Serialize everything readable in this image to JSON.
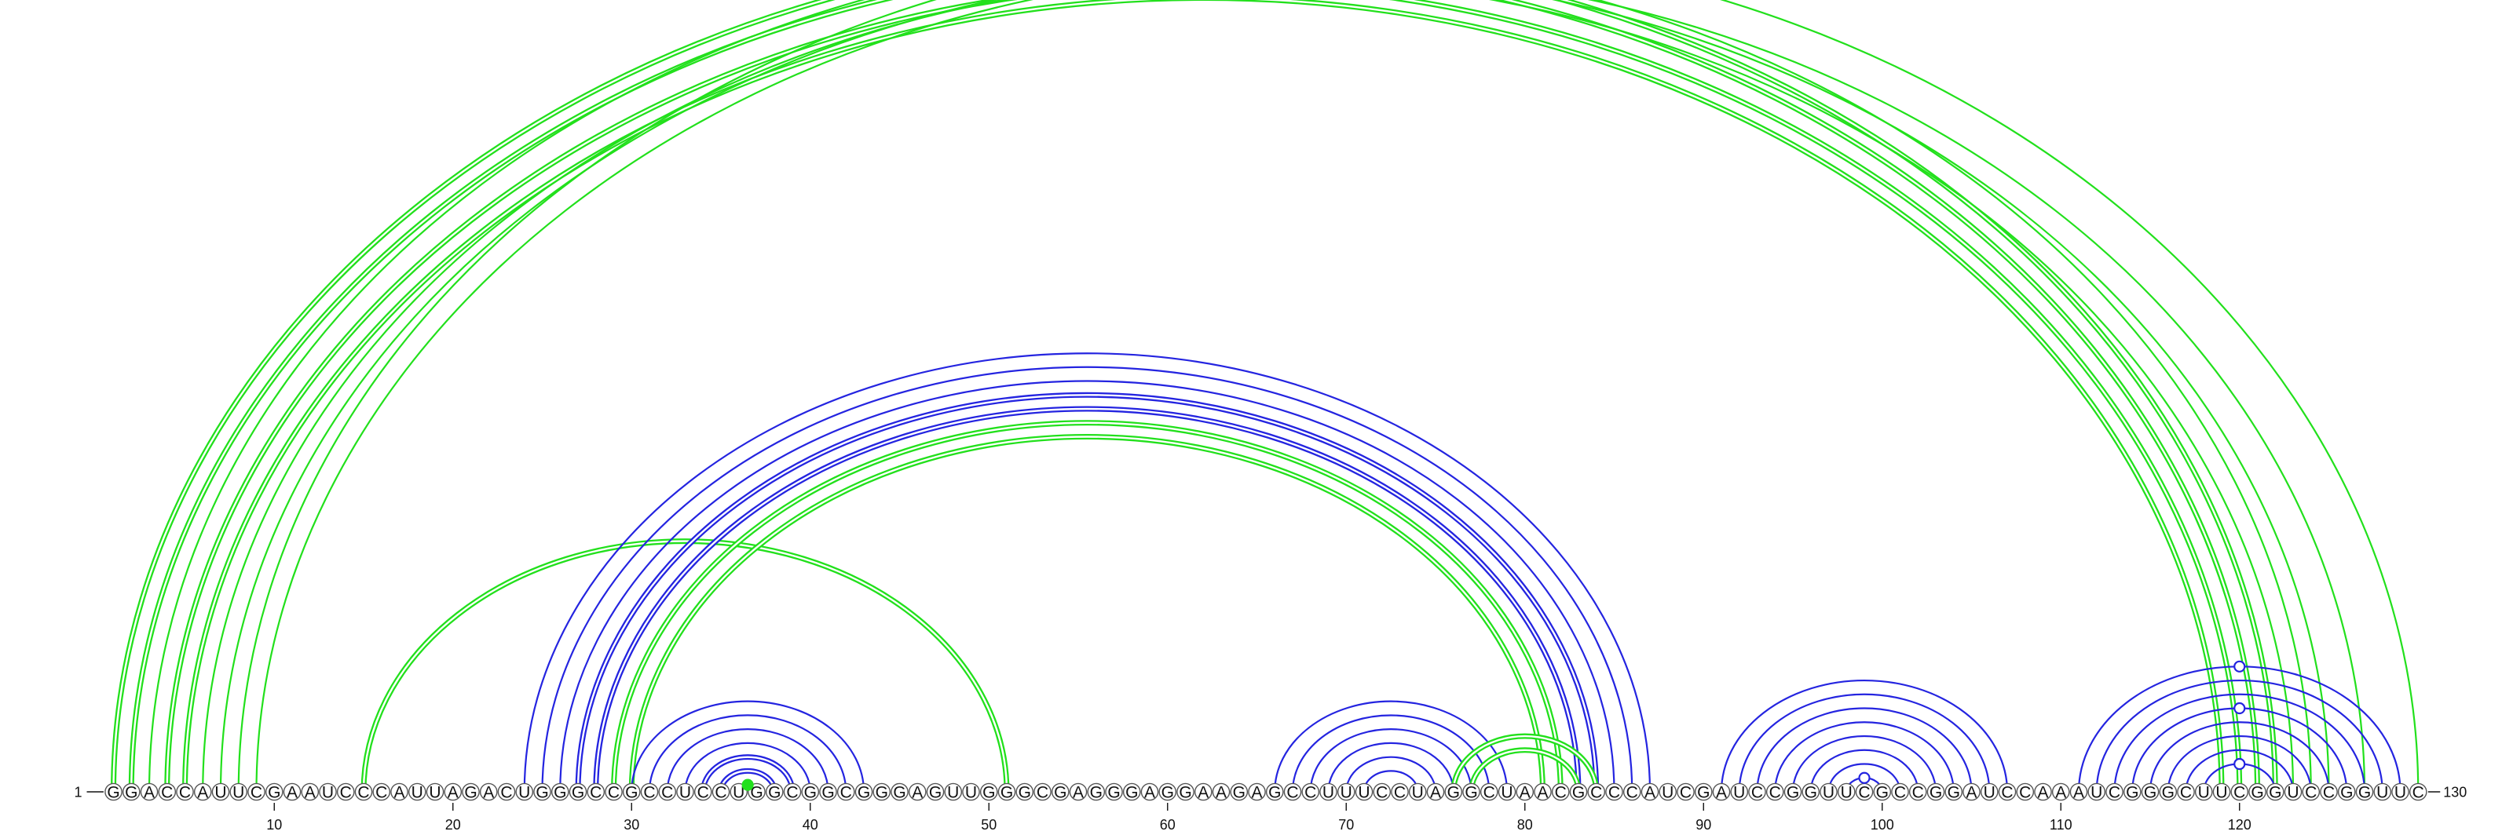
{
  "sequence": "GGACCAUUCGAAUCCCAUUAGACUGGGCCGCCUCCUGGCGGCGGGAGUUGGGCGAGGGAGGAAGAGCCUUUCCUAGGCUAACGCCCAUCGAUCCGGUUCGCCGGAUCCAAAUCGGGCUUCGGUCCGGUUC",
  "start_label": "1",
  "end_label": "130",
  "ticks": [
    {
      "pos": 10,
      "label": "10"
    },
    {
      "pos": 20,
      "label": "20"
    },
    {
      "pos": 30,
      "label": "30"
    },
    {
      "pos": 40,
      "label": "40"
    },
    {
      "pos": 50,
      "label": "50"
    },
    {
      "pos": 60,
      "label": "60"
    },
    {
      "pos": 70,
      "label": "70"
    },
    {
      "pos": 80,
      "label": "80"
    },
    {
      "pos": 90,
      "label": "90"
    },
    {
      "pos": 100,
      "label": "100"
    },
    {
      "pos": 110,
      "label": "110"
    },
    {
      "pos": 120,
      "label": "120"
    }
  ],
  "colors": {
    "green": "#22e01c",
    "blue": "#2424e0",
    "text": "#111111",
    "node_stroke": "#555555"
  },
  "arc_groups": [
    {
      "color": "green",
      "weight": "heavy",
      "pairs": [
        [
          1,
          122
        ],
        [
          2,
          121
        ],
        [
          4,
          120
        ],
        [
          5,
          119
        ]
      ]
    },
    {
      "color": "green",
      "weight": "light",
      "pairs": [
        [
          3,
          124
        ],
        [
          6,
          123
        ],
        [
          7,
          125
        ],
        [
          8,
          130
        ],
        [
          9,
          127
        ]
      ]
    },
    {
      "color": "green",
      "weight": "heavy",
      "pairs": [
        [
          15,
          51
        ]
      ]
    },
    {
      "color": "blue",
      "weight": "light",
      "pairs": [
        [
          24,
          87
        ],
        [
          25,
          86
        ],
        [
          26,
          85
        ]
      ]
    },
    {
      "color": "blue",
      "weight": "heavy",
      "pairs": [
        [
          27,
          84
        ],
        [
          28,
          83
        ]
      ]
    },
    {
      "color": "green",
      "weight": "heavy",
      "pairs": [
        [
          29,
          82
        ],
        [
          30,
          81
        ]
      ]
    },
    {
      "color": "blue",
      "weight": "light",
      "pairs": [
        [
          30,
          43
        ],
        [
          31,
          42
        ],
        [
          32,
          41
        ],
        [
          33,
          40
        ]
      ]
    },
    {
      "color": "blue",
      "weight": "heavy",
      "pairs": [
        [
          34,
          39
        ],
        [
          35,
          38
        ]
      ]
    },
    {
      "color": "green",
      "weight": "light",
      "pairs": [
        [
          36,
          37
        ]
      ]
    },
    {
      "color": "blue",
      "weight": "light",
      "pairs": [
        [
          66,
          79
        ],
        [
          67,
          78
        ],
        [
          68,
          77
        ],
        [
          69,
          76
        ],
        [
          70,
          75
        ],
        [
          71,
          74
        ]
      ]
    },
    {
      "color": "green",
      "weight": "heavy",
      "pairs": [
        [
          76,
          84
        ],
        [
          77,
          83
        ]
      ]
    },
    {
      "color": "blue",
      "weight": "light",
      "pairs": [
        [
          91,
          107
        ],
        [
          92,
          106
        ],
        [
          93,
          105
        ],
        [
          94,
          104
        ],
        [
          95,
          103
        ],
        [
          96,
          102
        ],
        [
          97,
          101
        ],
        [
          98,
          100
        ]
      ]
    },
    {
      "color": "blue",
      "weight": "light",
      "pairs": [
        [
          111,
          129
        ],
        [
          112,
          128
        ],
        [
          113,
          127
        ],
        [
          114,
          126
        ],
        [
          115,
          125
        ],
        [
          116,
          124
        ],
        [
          117,
          123
        ],
        [
          118,
          122
        ]
      ]
    }
  ],
  "markers": [
    {
      "pair": [
        8,
        130
      ],
      "color": "green",
      "filled": false
    },
    {
      "pair": [
        36,
        37
      ],
      "color": "green",
      "filled": true
    },
    {
      "pair": [
        98,
        100
      ],
      "color": "blue",
      "filled": false
    },
    {
      "pair": [
        111,
        129
      ],
      "color": "blue",
      "filled": false
    },
    {
      "pair": [
        114,
        126
      ],
      "color": "blue",
      "filled": false
    },
    {
      "pair": [
        118,
        122
      ],
      "color": "blue",
      "filled": false
    }
  ]
}
